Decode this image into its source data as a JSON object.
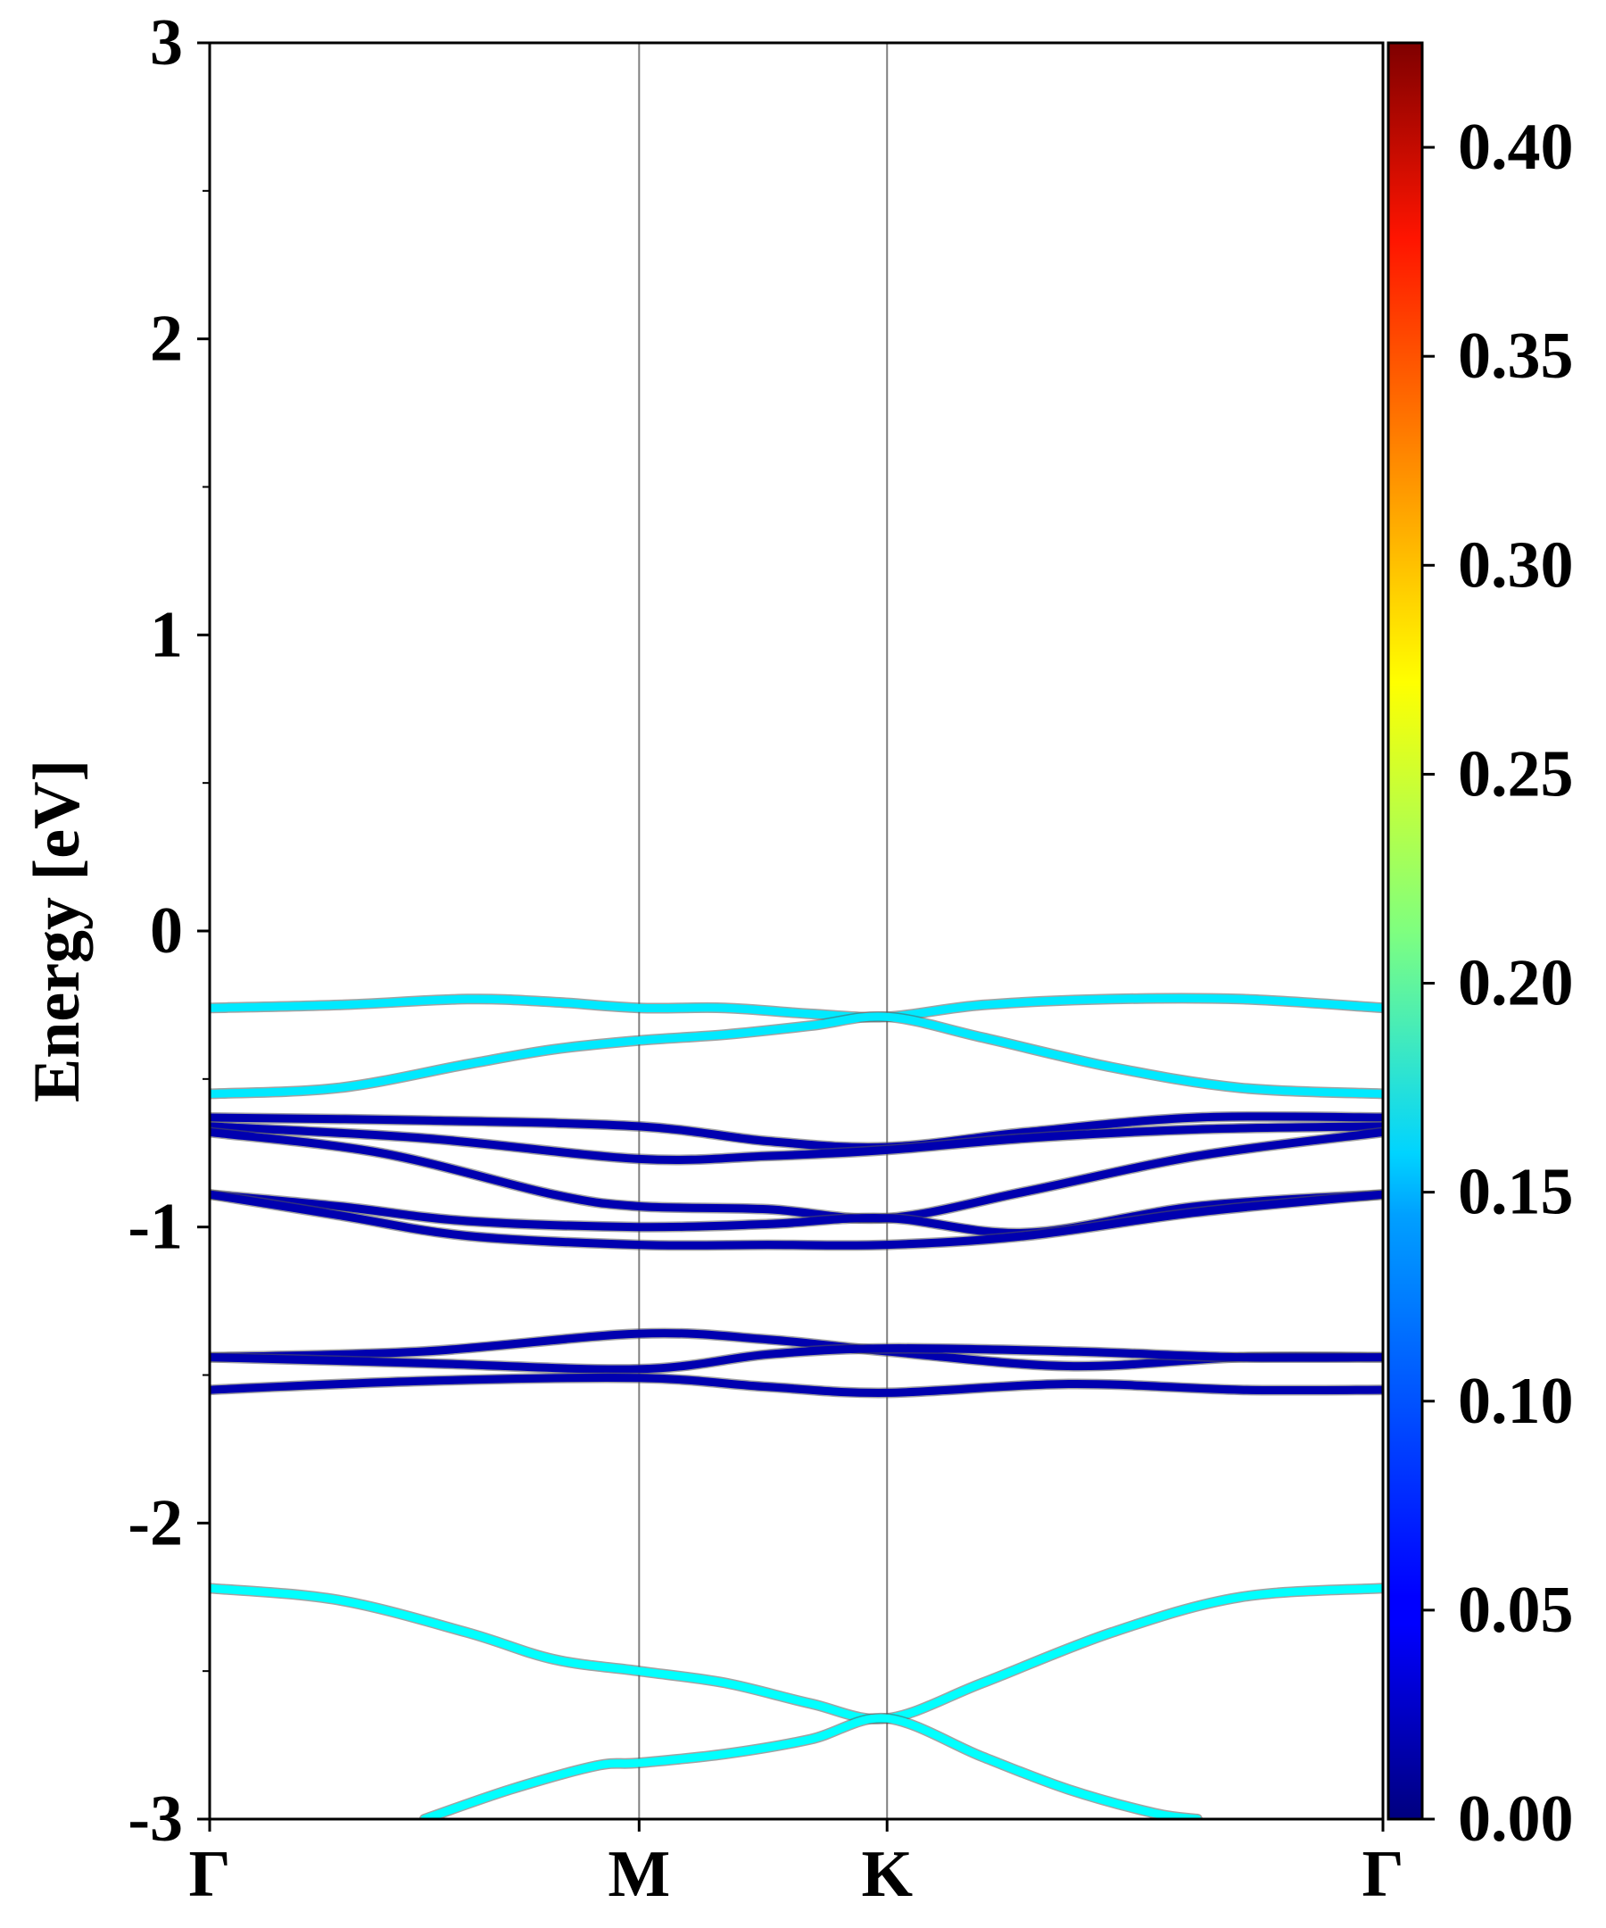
{
  "chart_data": {
    "type": "line",
    "title": "",
    "xlabel": "",
    "ylabel": "Energy [eV]",
    "ylim": [
      -3,
      3
    ],
    "yticks": [
      "3",
      "2",
      "1",
      "0",
      "-1",
      "-2",
      "-3"
    ],
    "ytick_values": [
      3,
      2,
      1,
      0,
      -1,
      -2,
      -3
    ],
    "kpath": {
      "labels": [
        "Γ",
        "M",
        "K",
        "Γ"
      ],
      "positions": [
        0,
        1,
        1.5774,
        2.7321
      ]
    },
    "grid": false,
    "colormap": "jet",
    "colorbar": {
      "range": [
        0,
        0.425
      ],
      "ticks": [
        "0.00",
        "0.05",
        "0.10",
        "0.15",
        "0.20",
        "0.25",
        "0.30",
        "0.35",
        "0.40"
      ],
      "tick_values": [
        0,
        0.05,
        0.1,
        0.15,
        0.2,
        0.25,
        0.3,
        0.35,
        0.4
      ]
    },
    "series": [
      {
        "weight": 0.15,
        "x": [
          0,
          0.3,
          0.6,
          0.8,
          1.0,
          1.2,
          1.4,
          1.5774,
          1.8,
          2.1,
          2.4,
          2.7321
        ],
        "y": [
          -0.26,
          -0.25,
          -0.23,
          -0.24,
          -0.26,
          -0.26,
          -0.28,
          -0.29,
          -0.25,
          -0.23,
          -0.23,
          -0.26
        ]
      },
      {
        "weight": 0.15,
        "x": [
          0,
          0.3,
          0.6,
          0.8,
          1.0,
          1.2,
          1.4,
          1.5774,
          1.8,
          2.1,
          2.4,
          2.7321
        ],
        "y": [
          -0.55,
          -0.53,
          -0.45,
          -0.4,
          -0.37,
          -0.35,
          -0.32,
          -0.29,
          -0.36,
          -0.46,
          -0.53,
          -0.55
        ]
      },
      {
        "weight": 0.02,
        "x": [
          0,
          0.5,
          1.0,
          1.3,
          1.5774,
          1.9,
          2.3,
          2.7321
        ],
        "y": [
          -0.63,
          -0.64,
          -0.66,
          -0.71,
          -0.73,
          -0.68,
          -0.63,
          -0.63
        ]
      },
      {
        "weight": 0.02,
        "x": [
          0,
          0.5,
          1.0,
          1.3,
          1.5774,
          1.9,
          2.3,
          2.7321
        ],
        "y": [
          -0.66,
          -0.7,
          -0.77,
          -0.76,
          -0.74,
          -0.7,
          -0.67,
          -0.66
        ]
      },
      {
        "weight": 0.02,
        "x": [
          0,
          0.4,
          0.8,
          1.0,
          1.3,
          1.5774,
          1.9,
          2.3,
          2.7321
        ],
        "y": [
          -0.68,
          -0.75,
          -0.89,
          -0.93,
          -0.94,
          -0.97,
          -0.88,
          -0.76,
          -0.68
        ]
      },
      {
        "weight": 0.02,
        "x": [
          0,
          0.3,
          0.6,
          1.0,
          1.3,
          1.5774,
          1.9,
          2.3,
          2.7321
        ],
        "y": [
          -0.89,
          -0.93,
          -0.98,
          -1.0,
          -0.99,
          -0.97,
          -1.02,
          -0.93,
          -0.89
        ]
      },
      {
        "weight": 0.02,
        "x": [
          0,
          0.3,
          0.6,
          1.0,
          1.3,
          1.5774,
          1.9,
          2.3,
          2.7321
        ],
        "y": [
          -0.89,
          -0.96,
          -1.03,
          -1.06,
          -1.06,
          -1.06,
          -1.03,
          -0.95,
          -0.89
        ]
      },
      {
        "weight": 0.02,
        "x": [
          0,
          0.5,
          1.0,
          1.3,
          1.5774,
          2.0,
          2.4,
          2.7321
        ],
        "y": [
          -1.44,
          -1.42,
          -1.36,
          -1.38,
          -1.42,
          -1.47,
          -1.44,
          -1.44
        ]
      },
      {
        "weight": 0.02,
        "x": [
          0,
          0.5,
          1.0,
          1.3,
          1.5774,
          2.0,
          2.4,
          2.7321
        ],
        "y": [
          -1.44,
          -1.46,
          -1.48,
          -1.43,
          -1.41,
          -1.42,
          -1.44,
          -1.44
        ]
      },
      {
        "weight": 0.02,
        "x": [
          0,
          0.5,
          1.0,
          1.3,
          1.5774,
          2.0,
          2.4,
          2.7321
        ],
        "y": [
          -1.55,
          -1.52,
          -1.51,
          -1.54,
          -1.56,
          -1.53,
          -1.55,
          -1.55
        ]
      },
      {
        "weight": 0.16,
        "x": [
          0,
          0.3,
          0.6,
          0.8,
          1.0,
          1.2,
          1.4,
          1.5774,
          1.8,
          2.1,
          2.4,
          2.7321
        ],
        "y": [
          -2.22,
          -2.26,
          -2.37,
          -2.46,
          -2.5,
          -2.54,
          -2.61,
          -2.66,
          -2.54,
          -2.37,
          -2.25,
          -2.22
        ]
      },
      {
        "weight": 0.16,
        "x": [
          0.5,
          0.7,
          0.9,
          1.0,
          1.2,
          1.4,
          1.5774,
          1.8,
          2.0,
          2.2,
          2.3
        ],
        "y": [
          -3.0,
          -2.9,
          -2.82,
          -2.81,
          -2.78,
          -2.73,
          -2.66,
          -2.79,
          -2.9,
          -2.98,
          -3.0
        ]
      }
    ]
  }
}
